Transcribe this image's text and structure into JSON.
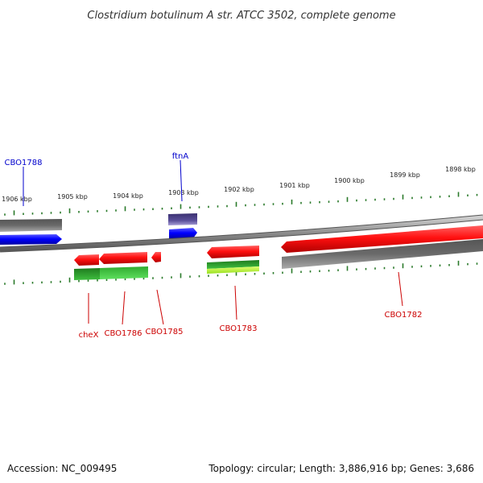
{
  "title": "Clostridium botulinum A str. ATCC 3502, complete genome",
  "accession": "Accession: NC_009495",
  "topology": "Topology: circular; Length: 3,886,916 bp; Genes: 3,686",
  "ruler_ticks": [
    "1906 kbp",
    "1905 kbp",
    "1904 kbp",
    "1903 kbp",
    "1902 kbp",
    "1901 kbp",
    "1900 kbp",
    "1899 kbp",
    "1898 kbp"
  ],
  "gene_labels": {
    "cbo1788": "CBO1788",
    "ftna": "ftnA",
    "chex": "cheX",
    "cbo1786": "CBO1786",
    "cbo1785": "CBO1785",
    "cbo1783": "CBO1783",
    "cbo1782": "CBO1782"
  },
  "colors": {
    "forward_cds": "#0000ee",
    "reverse_cds": "#ee0000",
    "forward_label": "#0000cc",
    "reverse_label": "#cc0000",
    "tick": "#2a7a2a",
    "backbone": "#777777",
    "gray_feature": "#666666",
    "purple_feature": "#4a3f8a",
    "green_feature": "#2fa02f",
    "lime_feature": "#b8f040"
  }
}
